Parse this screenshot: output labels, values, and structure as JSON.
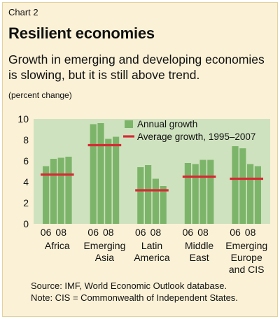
{
  "header": {
    "chart_number": "Chart 2",
    "title": "Resilient economies",
    "subtitle": "Growth in emerging and developing economies is slowing, but it is still above trend.",
    "unit": "(percent change)"
  },
  "footer": {
    "source": "Source: IMF, World Economic Outlook database.",
    "note": "Note: CIS = Commonwealth of Independent States."
  },
  "colors": {
    "background": "#fbf1d6",
    "plot_background": "#cfe2bf",
    "bar": "#7cb56a",
    "average_line": "#d62a34"
  },
  "chart_data": {
    "type": "bar",
    "ylim": [
      0,
      10
    ],
    "yticks": [
      0,
      2,
      4,
      6,
      8,
      10
    ],
    "grid": false,
    "legend_placement": "top-right",
    "groups": [
      {
        "name": [
          "Africa"
        ],
        "tick_labels": [
          "06",
          "08"
        ],
        "annual_growth": [
          5.5,
          6.2,
          6.3,
          6.4
        ],
        "average_growth": 4.7
      },
      {
        "name": [
          "Emerging",
          "Asia"
        ],
        "tick_labels": [
          "06",
          "08"
        ],
        "annual_growth": [
          9.5,
          9.6,
          8.1,
          8.3
        ],
        "average_growth": 7.5
      },
      {
        "name": [
          "Latin",
          "America"
        ],
        "tick_labels": [
          "06",
          "08"
        ],
        "annual_growth": [
          5.4,
          5.6,
          4.3,
          3.6
        ],
        "average_growth": 3.2
      },
      {
        "name": [
          "Middle",
          "East"
        ],
        "tick_labels": [
          "06",
          "08"
        ],
        "annual_growth": [
          5.8,
          5.7,
          6.1,
          6.1
        ],
        "average_growth": 4.5
      },
      {
        "name": [
          "Emerging",
          "Europe",
          "and CIS"
        ],
        "tick_labels": [
          "06",
          "08"
        ],
        "annual_growth": [
          7.4,
          7.2,
          5.7,
          5.5
        ],
        "average_growth": 4.3
      }
    ],
    "legend": {
      "bars": "Annual growth",
      "line": "Average growth, 1995–2007"
    }
  }
}
